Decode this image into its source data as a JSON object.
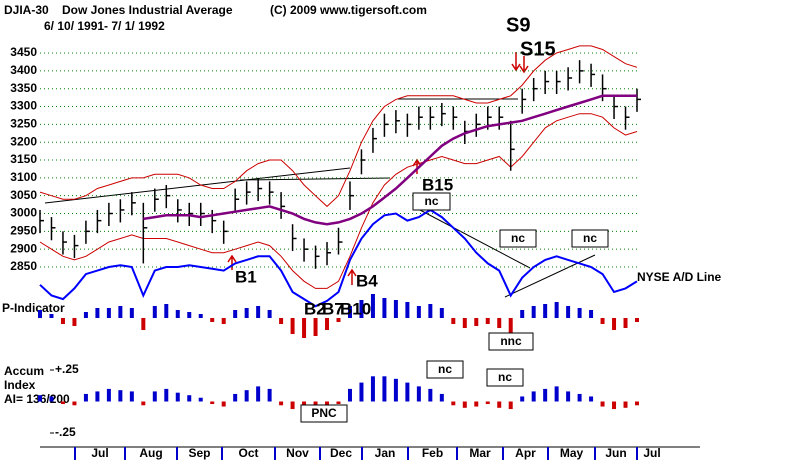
{
  "chart_data": {
    "type": "stock",
    "symbol": "DJIA-30",
    "title": "Dow Jones Industrial Average",
    "copyright": "(C) 2009 www.tigersoft.com",
    "subtitle": "6/ 10/ 1991- 7/ 1/ 1992",
    "categories": [
      "Jul",
      "Aug",
      "Sep",
      "Oct",
      "Nov",
      "Dec",
      "Jan",
      "Feb",
      "Mar",
      "Apr",
      "May",
      "Jun",
      "Jul"
    ],
    "ylim": [
      2700,
      3500
    ],
    "yticks": [
      2850,
      2900,
      2950,
      3000,
      3050,
      3100,
      3150,
      3200,
      3250,
      3300,
      3350,
      3400,
      3450
    ],
    "grid": true,
    "bar_color": "#000000",
    "high": [
      3010,
      2990,
      2950,
      2940,
      2980,
      3010,
      3030,
      3040,
      3060,
      3030,
      3070,
      3080,
      3040,
      3030,
      3030,
      3010,
      2980,
      3070,
      3090,
      3100,
      3090,
      3060,
      2970,
      2930,
      2910,
      2920,
      2960,
      3090,
      3180,
      3240,
      3280,
      3290,
      3280,
      3300,
      3300,
      3310,
      3300,
      3260,
      3280,
      3300,
      3300,
      3260,
      3350,
      3380,
      3400,
      3400,
      3410,
      3430,
      3420,
      3390,
      3330,
      3300,
      3350
    ],
    "low": [
      2945,
      2925,
      2885,
      2875,
      2915,
      2945,
      2965,
      2975,
      2995,
      2860,
      3005,
      3015,
      2975,
      2965,
      2965,
      2945,
      2915,
      3005,
      3025,
      3035,
      3025,
      2985,
      2895,
      2865,
      2845,
      2855,
      2885,
      3010,
      3110,
      3170,
      3215,
      3225,
      3215,
      3235,
      3235,
      3245,
      3235,
      3195,
      3215,
      3235,
      3235,
      3120,
      3280,
      3315,
      3335,
      3335,
      3345,
      3365,
      3355,
      3315,
      3265,
      3235,
      3285
    ],
    "close": [
      2980,
      2960,
      2920,
      2910,
      2950,
      2980,
      3000,
      3010,
      3030,
      2960,
      3040,
      3050,
      3010,
      3000,
      3000,
      2980,
      2950,
      3040,
      3060,
      3070,
      3060,
      3020,
      2930,
      2900,
      2880,
      2890,
      2920,
      3050,
      3150,
      3210,
      3250,
      3260,
      3250,
      3270,
      3270,
      3280,
      3270,
      3230,
      3250,
      3270,
      3270,
      3180,
      3320,
      3350,
      3370,
      3370,
      3380,
      3400,
      3390,
      3350,
      3300,
      3270,
      3320
    ],
    "upper_band": {
      "color": "#cc0000",
      "values": [
        3060,
        3050,
        3040,
        3040,
        3050,
        3070,
        3080,
        3090,
        3100,
        3100,
        3110,
        3110,
        3110,
        3100,
        3080,
        3070,
        3070,
        3090,
        3120,
        3140,
        3150,
        3150,
        3120,
        3080,
        3050,
        3020,
        3050,
        3120,
        3200,
        3260,
        3300,
        3320,
        3330,
        3330,
        3330,
        3330,
        3330,
        3320,
        3310,
        3310,
        3320,
        3330,
        3360,
        3400,
        3430,
        3450,
        3460,
        3470,
        3470,
        3460,
        3440,
        3420,
        3410
      ]
    },
    "lower_band": {
      "color": "#cc0000",
      "values": [
        2920,
        2900,
        2880,
        2870,
        2880,
        2900,
        2920,
        2930,
        2940,
        2930,
        2930,
        2930,
        2920,
        2910,
        2900,
        2890,
        2890,
        2900,
        2910,
        2920,
        2910,
        2880,
        2840,
        2810,
        2790,
        2790,
        2810,
        2880,
        2960,
        3030,
        3080,
        3110,
        3130,
        3140,
        3150,
        3160,
        3150,
        3140,
        3140,
        3150,
        3160,
        3130,
        3160,
        3200,
        3240,
        3260,
        3270,
        3280,
        3280,
        3270,
        3240,
        3220,
        3230
      ]
    },
    "moving_average": {
      "color": "#800080",
      "values": [
        null,
        null,
        null,
        null,
        null,
        null,
        null,
        null,
        null,
        2985,
        2990,
        2995,
        2995,
        2995,
        2990,
        2995,
        3000,
        3005,
        3010,
        3015,
        3020,
        3010,
        3000,
        2985,
        2975,
        2970,
        2975,
        2985,
        3000,
        3020,
        3045,
        3070,
        3100,
        3130,
        3160,
        3190,
        3210,
        3225,
        3235,
        3245,
        3250,
        3255,
        3260,
        3270,
        3280,
        3290,
        3300,
        3310,
        3320,
        3330,
        3330,
        3330,
        3330
      ]
    },
    "ad_line": {
      "name": "NYSE A/D Line",
      "color": "#0000ff",
      "values": [
        2800,
        2770,
        2760,
        2790,
        2830,
        2840,
        2850,
        2855,
        2850,
        2770,
        2840,
        2850,
        2850,
        2855,
        2850,
        2845,
        2840,
        2860,
        2870,
        2880,
        2880,
        2840,
        2780,
        2760,
        2740,
        2755,
        2780,
        2870,
        2930,
        2970,
        2995,
        3000,
        2980,
        2990,
        3010,
        2990,
        2960,
        2930,
        2890,
        2860,
        2840,
        2770,
        2820,
        2850,
        2870,
        2880,
        2870,
        2860,
        2850,
        2830,
        2780,
        2790,
        2810
      ]
    },
    "p_indicator": {
      "name": "P-Indicator",
      "up_color": "#0000cc",
      "down_color": "#cc0000",
      "values": [
        4,
        2,
        -3,
        -4,
        3,
        5,
        5,
        6,
        5,
        -6,
        6,
        7,
        4,
        3,
        2,
        -2,
        -3,
        4,
        5,
        6,
        4,
        -3,
        -8,
        -10,
        -9,
        -6,
        -2,
        6,
        9,
        12,
        10,
        9,
        8,
        6,
        7,
        5,
        -3,
        -5,
        -4,
        -3,
        -5,
        -8,
        4,
        6,
        7,
        8,
        6,
        5,
        4,
        -3,
        -6,
        -5,
        -2
      ]
    },
    "accum": {
      "label": "Accum",
      "label2": "Index",
      "ai": "AI= 136/200",
      "up_color": "#0000cc",
      "down_color": "#cc0000",
      "ylim": [
        -0.25,
        0.25
      ],
      "yticks": [
        {
          "value": 0.25,
          "label": "+.25"
        },
        {
          "value": -0.25,
          "label": "-.25"
        }
      ],
      "values": [
        0.05,
        0.04,
        -0.02,
        -0.03,
        0.06,
        0.08,
        0.1,
        0.09,
        0.08,
        -0.03,
        0.08,
        0.1,
        0.07,
        0.05,
        0.03,
        -0.02,
        -0.04,
        0.06,
        0.09,
        0.12,
        0.1,
        -0.03,
        -0.06,
        -0.08,
        -0.07,
        -0.04,
        -0.02,
        0.1,
        0.15,
        0.2,
        0.2,
        0.18,
        0.15,
        0.12,
        0.1,
        0.06,
        -0.03,
        -0.05,
        -0.04,
        -0.02,
        -0.05,
        -0.06,
        0.04,
        0.08,
        0.1,
        0.12,
        0.08,
        0.06,
        0.04,
        -0.04,
        -0.06,
        -0.05,
        -0.03
      ]
    },
    "annotations": [
      "S9",
      "S15",
      "B15",
      "B1",
      "B4",
      "B2",
      "B7",
      "B10"
    ],
    "boxes": [
      "nc",
      "nc",
      "nc",
      "nnc",
      "nc",
      "nc",
      "PNC"
    ]
  }
}
